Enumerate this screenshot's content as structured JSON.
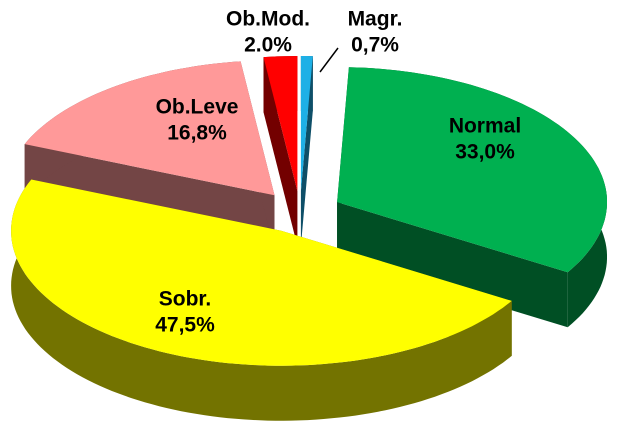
{
  "chart_data": {
    "type": "pie3d",
    "categories": [
      "Magr.",
      "Normal",
      "Sobr.",
      "Ob.Leve",
      "Ob.Mod."
    ],
    "values": [
      0.7,
      33.0,
      47.5,
      16.8,
      2.0
    ],
    "value_labels": [
      "0,7%",
      "33,0%",
      "47,5%",
      "16,8%",
      "2.0%"
    ],
    "colors": [
      "#1eb0e6",
      "#00b050",
      "#ffff00",
      "#ff9999",
      "#ff0000"
    ]
  }
}
